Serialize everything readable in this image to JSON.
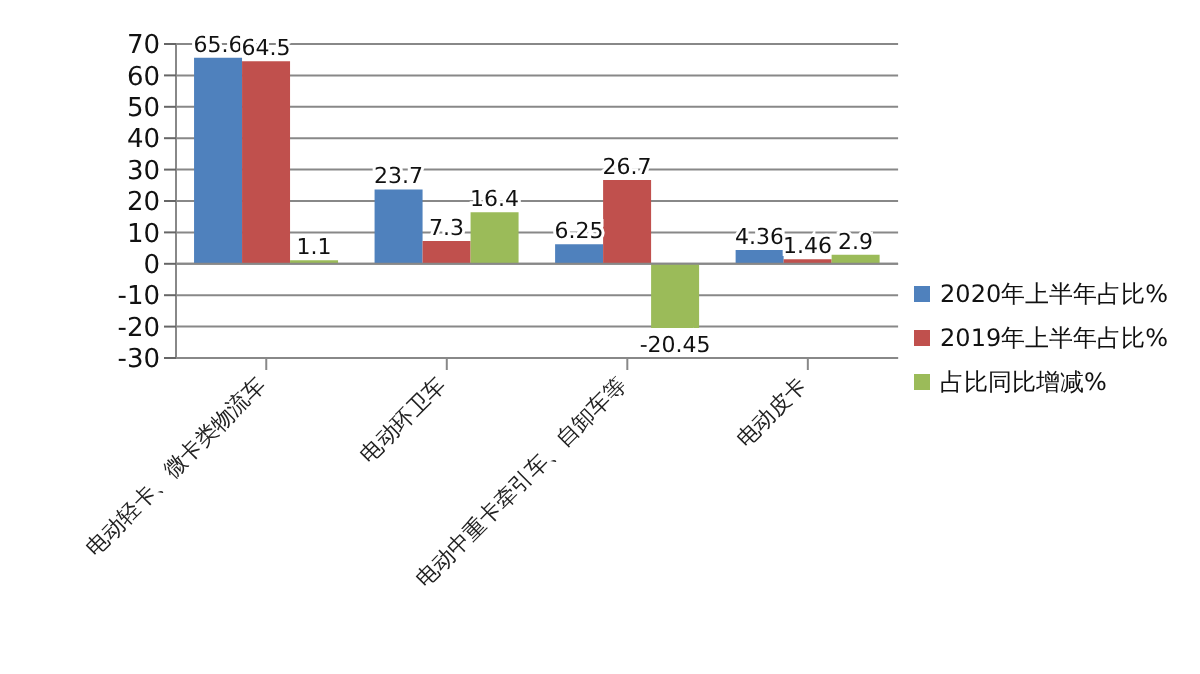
{
  "chart_data": {
    "type": "bar",
    "categories": [
      "电动轻卡、微卡类物流车",
      "电动环卫车",
      "电动中重卡牵引车、自卸车等",
      "电动皮卡"
    ],
    "series": [
      {
        "name": "2020年上半年占比%",
        "color": "#4f81bd",
        "values": [
          65.6,
          23.7,
          6.25,
          4.36
        ]
      },
      {
        "name": "2019年上半年占比%",
        "color": "#c0504d",
        "values": [
          64.5,
          7.3,
          26.7,
          1.46
        ]
      },
      {
        "name": "占比同比增减%",
        "color": "#9bbb59",
        "values": [
          1.1,
          16.4,
          -20.45,
          2.9
        ]
      }
    ],
    "ylim": [
      -30,
      70
    ],
    "yticks": [
      -30,
      -20,
      -10,
      0,
      10,
      20,
      30,
      40,
      50,
      60,
      70
    ],
    "grid": "y",
    "legend": "right",
    "data_labels": true
  }
}
